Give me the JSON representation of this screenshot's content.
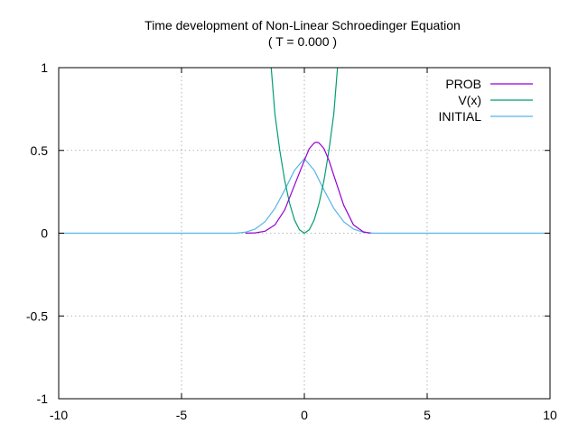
{
  "chart_data": {
    "type": "line",
    "title": "Time development of Non-Linear Schroedinger Equation",
    "subtitle": "( T = 0.000 )",
    "xlabel": "",
    "ylabel": "",
    "xlim": [
      -10,
      10
    ],
    "ylim": [
      -1,
      1
    ],
    "xticks": [
      "-10",
      "-5",
      "0",
      "5",
      "10"
    ],
    "yticks": [
      "1",
      "0.5",
      "0",
      "-0.5",
      "-1"
    ],
    "grid": true,
    "legend_position": "top-right",
    "series": [
      {
        "name": "PROB",
        "color": "#9400d3",
        "x": [
          -2.4,
          -2.0,
          -1.6,
          -1.2,
          -0.8,
          -0.4,
          0.0,
          0.2,
          0.4,
          0.5,
          0.6,
          0.8,
          1.0,
          1.2,
          1.6,
          2.0,
          2.4,
          2.7
        ],
        "y": [
          0.0,
          0.002,
          0.012,
          0.05,
          0.14,
          0.29,
          0.44,
          0.51,
          0.545,
          0.55,
          0.545,
          0.51,
          0.44,
          0.35,
          0.17,
          0.05,
          0.008,
          0.0
        ]
      },
      {
        "name": "V(x)",
        "color": "#009e73",
        "x": [
          -1.35,
          -1.2,
          -1.0,
          -0.8,
          -0.6,
          -0.4,
          -0.2,
          0.0,
          0.2,
          0.4,
          0.6,
          0.8,
          1.0,
          1.2,
          1.35
        ],
        "y": [
          1.0,
          0.72,
          0.5,
          0.32,
          0.18,
          0.08,
          0.02,
          0.0,
          0.02,
          0.08,
          0.18,
          0.32,
          0.5,
          0.72,
          1.0
        ]
      },
      {
        "name": "INITIAL",
        "color": "#56b4e9",
        "x": [
          -10.0,
          -2.8,
          -2.4,
          -2.0,
          -1.6,
          -1.2,
          -0.8,
          -0.4,
          0.0,
          0.4,
          0.8,
          1.2,
          1.6,
          2.0,
          2.4,
          2.8,
          10.0
        ],
        "y": [
          0.0,
          0.0,
          0.006,
          0.025,
          0.07,
          0.15,
          0.26,
          0.38,
          0.45,
          0.38,
          0.26,
          0.15,
          0.07,
          0.025,
          0.006,
          0.0,
          0.0
        ]
      }
    ]
  }
}
